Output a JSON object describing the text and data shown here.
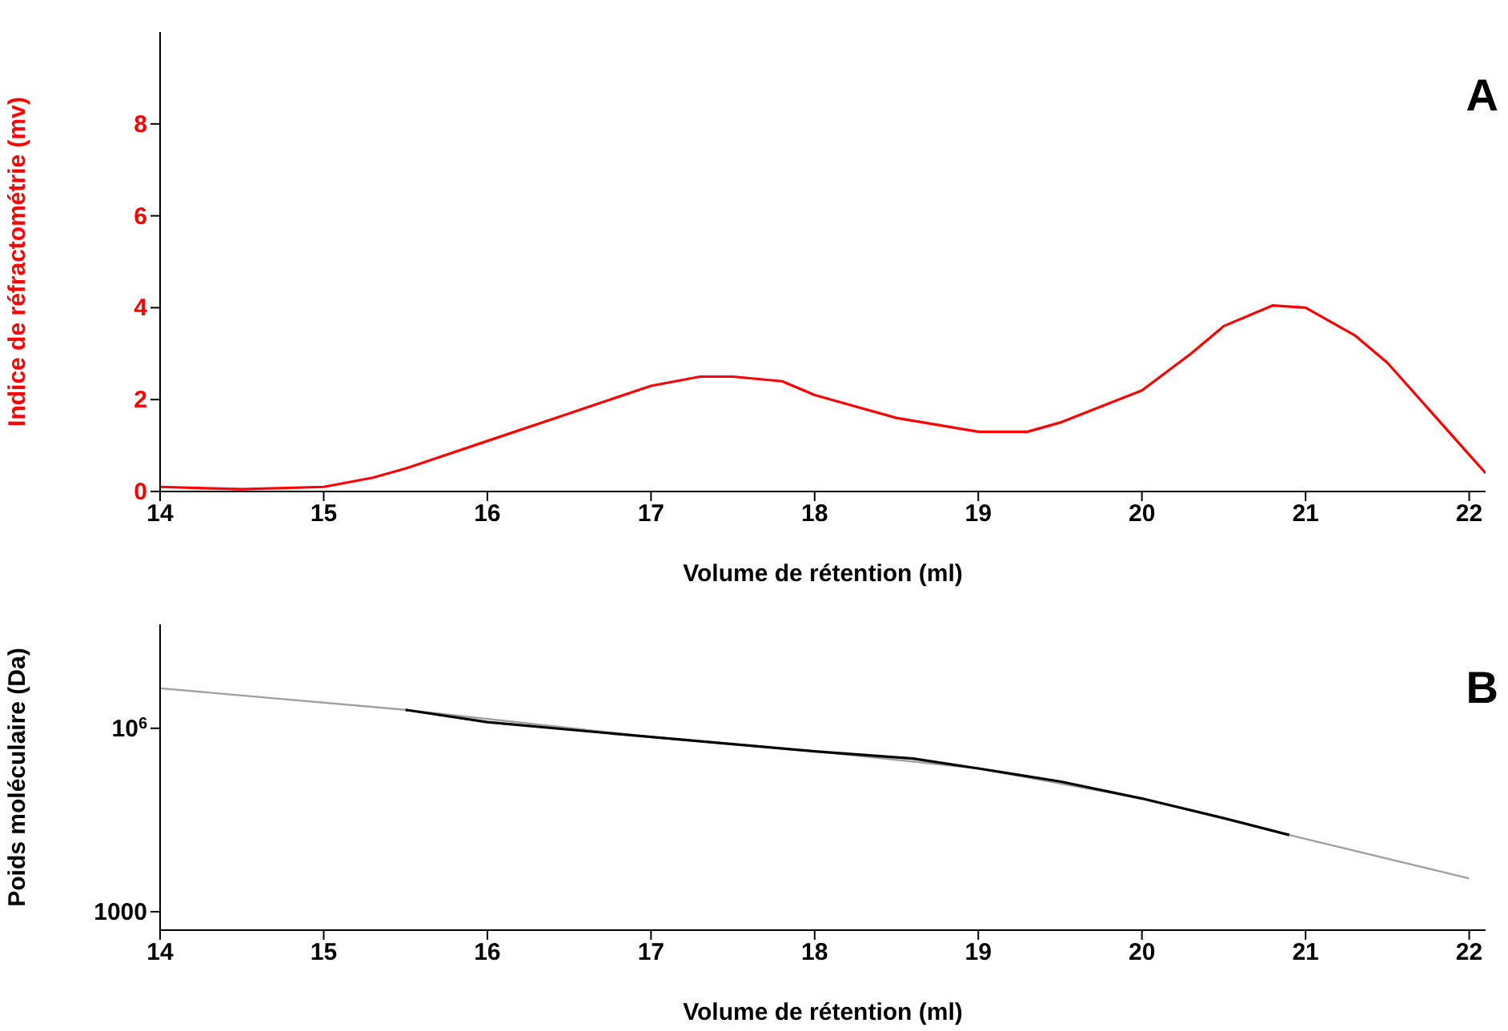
{
  "chart_data": [
    {
      "type": "line",
      "xlabel": "Volume de rétention (ml)",
      "ylabel": "Indice de réfractométrie (mv)",
      "annotations": [
        "A"
      ],
      "xlim": [
        14,
        22.1
      ],
      "xticks": [
        14,
        15,
        16,
        17,
        18,
        19,
        20,
        21,
        22
      ],
      "ylim": [
        0,
        10
      ],
      "yticks": [
        0,
        2,
        4,
        6,
        8
      ],
      "marker": "none",
      "line_style": "solid",
      "series": [
        {
          "color": "#ff0000",
          "x": [
            14,
            14.5,
            15,
            15.3,
            15.5,
            16,
            16.5,
            17,
            17.3,
            17.5,
            17.8,
            18,
            18.5,
            19,
            19.3,
            19.5,
            20,
            20.3,
            20.5,
            20.8,
            21,
            21.3,
            21.5,
            21.8,
            22,
            22.1
          ],
          "values": [
            0.1,
            0.05,
            0.1,
            0.3,
            0.5,
            1.1,
            1.7,
            2.3,
            2.5,
            2.5,
            2.4,
            2.1,
            1.6,
            1.3,
            1.3,
            1.5,
            2.2,
            3.0,
            3.6,
            4.05,
            4.0,
            3.4,
            2.8,
            1.6,
            0.8,
            0.4
          ]
        }
      ]
    },
    {
      "type": "line",
      "xlabel": "Volume de rétention (ml)",
      "ylabel": "Poids moléculaire (Da)",
      "annotations": [
        "B"
      ],
      "xlim": [
        14,
        22.1
      ],
      "xticks": [
        14,
        15,
        16,
        17,
        18,
        19,
        20,
        21,
        22
      ],
      "ylim": [
        500,
        50000000
      ],
      "yticks": [
        1000,
        {
          "value": 1000000,
          "label": "10$^{6}$"
        }
      ],
      "log": "y",
      "marker": "none",
      "line_style": "solid",
      "series": [
        {
          "color": "#a0a0a0",
          "x": [
            14,
            15.5,
            17,
            18,
            19,
            20,
            20.9,
            22
          ],
          "values": [
            4500000,
            2000000,
            720000,
            420000,
            220000,
            71000,
            18000,
            3500
          ]
        },
        {
          "color": "#000000",
          "x": [
            15.5,
            16,
            16.5,
            17,
            17.5,
            18,
            18.6,
            19,
            19.5,
            20,
            20.5,
            20.9
          ],
          "values": [
            2000000,
            1260000,
            950000,
            720000,
            550000,
            420000,
            320000,
            220000,
            135000,
            71000,
            34000,
            18000
          ]
        }
      ]
    }
  ]
}
